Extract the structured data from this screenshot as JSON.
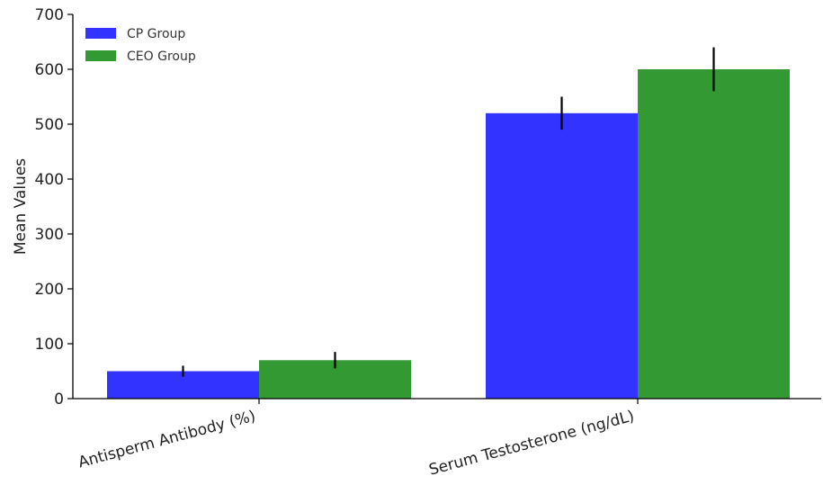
{
  "chart_data": {
    "type": "bar",
    "title": "",
    "xlabel": "",
    "ylabel": "Mean Values",
    "ylim": [
      0,
      700
    ],
    "yticks": [
      0,
      100,
      200,
      300,
      400,
      500,
      600,
      700
    ],
    "categories": [
      "Antisperm Antibody (%)",
      "Serum Testosterone (ng/dL)"
    ],
    "series": [
      {
        "name": "CP Group",
        "color": "#3333ff",
        "values": [
          50,
          520
        ],
        "errors": [
          10,
          30
        ]
      },
      {
        "name": "CEO Group",
        "color": "#339933",
        "values": [
          70,
          600
        ],
        "errors": [
          15,
          40
        ]
      }
    ],
    "grid": false,
    "legend_position": "top-left",
    "xtick_rotation": "rotated ~15 degrees"
  }
}
